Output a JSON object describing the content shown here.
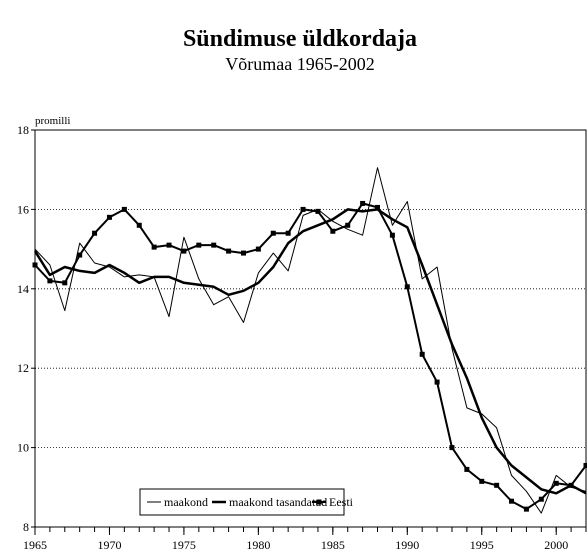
{
  "chart_data": {
    "type": "line",
    "title": "Sündimuse üldkordaja",
    "subtitle": "Võrumaa 1965-2002",
    "y_label": "promilli",
    "x": [
      1965,
      1966,
      1967,
      1968,
      1969,
      1970,
      1971,
      1972,
      1973,
      1974,
      1975,
      1976,
      1977,
      1978,
      1979,
      1980,
      1981,
      1982,
      1983,
      1984,
      1985,
      1986,
      1987,
      1988,
      1989,
      1990,
      1991,
      1992,
      1993,
      1994,
      1995,
      1996,
      1997,
      1998,
      1999,
      2000,
      2001,
      2002
    ],
    "xlim": [
      1965,
      2002
    ],
    "xticks": [
      1965,
      1970,
      1975,
      1980,
      1985,
      1990,
      1995,
      2000
    ],
    "ylim": [
      8,
      18
    ],
    "yticks": [
      8,
      10,
      12,
      14,
      16,
      18
    ],
    "grid": true,
    "legend": "bottom",
    "series": [
      {
        "name": "maakond",
        "color": "#000000",
        "width": 1,
        "marker": "none",
        "values": [
          15.0,
          14.6,
          13.45,
          15.15,
          14.65,
          14.55,
          14.3,
          14.35,
          14.3,
          13.3,
          15.3,
          14.25,
          13.6,
          13.8,
          13.15,
          14.4,
          14.9,
          14.45,
          15.85,
          16.0,
          15.7,
          15.5,
          15.35,
          17.05,
          15.6,
          16.2,
          14.25,
          14.55,
          12.5,
          11.0,
          10.85,
          10.5,
          9.3,
          8.9,
          8.35,
          9.3,
          9.0,
          8.9
        ]
      },
      {
        "name": "maakond tasandatud",
        "color": "#000000",
        "width": 2.5,
        "marker": "none",
        "values": [
          14.95,
          14.35,
          14.55,
          14.45,
          14.4,
          14.6,
          14.4,
          14.15,
          14.3,
          14.3,
          14.15,
          14.1,
          14.05,
          13.85,
          13.95,
          14.15,
          14.55,
          15.15,
          15.45,
          15.6,
          15.75,
          16.0,
          15.95,
          16.0,
          15.75,
          15.55,
          14.6,
          13.6,
          12.6,
          11.75,
          10.75,
          10.0,
          9.55,
          9.25,
          8.95,
          8.85,
          9.05,
          8.85
        ]
      },
      {
        "name": "Eesti",
        "color": "#000000",
        "width": 2,
        "marker": "square",
        "values": [
          14.6,
          14.2,
          14.15,
          14.85,
          15.4,
          15.8,
          16.0,
          15.6,
          15.05,
          15.1,
          14.95,
          15.1,
          15.1,
          14.95,
          14.9,
          15.0,
          15.4,
          15.4,
          16.0,
          15.95,
          15.45,
          15.6,
          16.15,
          16.05,
          15.35,
          14.05,
          12.35,
          11.65,
          10.0,
          9.45,
          9.15,
          9.05,
          8.65,
          8.45,
          8.7,
          9.1,
          9.05,
          9.55
        ]
      }
    ]
  }
}
